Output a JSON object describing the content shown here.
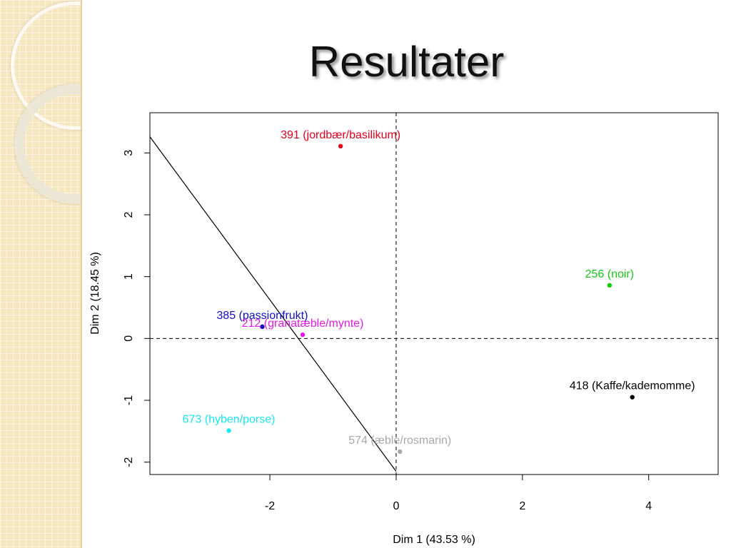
{
  "slide": {
    "title": "Resultater"
  },
  "chart_data": {
    "type": "scatter",
    "title": "",
    "xlabel": "Dim 1 (43.53 %)",
    "ylabel": "Dim 2 (18.45 %)",
    "xlim": [
      -3.9,
      5.1
    ],
    "ylim": [
      -2.2,
      3.65
    ],
    "xticks": [
      -2,
      0,
      2,
      4
    ],
    "yticks": [
      -2,
      -1,
      0,
      1,
      2,
      3
    ],
    "grid": false,
    "reference_lines": {
      "x": 0,
      "y": 0,
      "style": "dashed"
    },
    "fitted_line": {
      "x": [
        -4.0,
        0.0
      ],
      "y": [
        3.4,
        -2.15
      ]
    },
    "points": [
      {
        "label": "391 (jordbær/basilikum)",
        "x": -0.88,
        "y": 3.11,
        "color": "#e8001c"
      },
      {
        "label": "256 (noir)",
        "x": 3.38,
        "y": 0.86,
        "color": "#12cc12"
      },
      {
        "label": "385 (passionfrukt)",
        "x": -2.12,
        "y": 0.19,
        "color": "#1010c8"
      },
      {
        "label": "212 (granatæble/mynte)",
        "x": -1.48,
        "y": 0.06,
        "color": "#e818e8"
      },
      {
        "label": "418 (Kaffe/kademomme)",
        "x": 3.74,
        "y": -0.95,
        "color": "#000000"
      },
      {
        "label": "673 (hyben/porse)",
        "x": -2.65,
        "y": -1.49,
        "color": "#18e8f0"
      },
      {
        "label": "574 (æble/rosmarin)",
        "x": 0.06,
        "y": -1.83,
        "color": "#a8a8a8"
      }
    ]
  }
}
